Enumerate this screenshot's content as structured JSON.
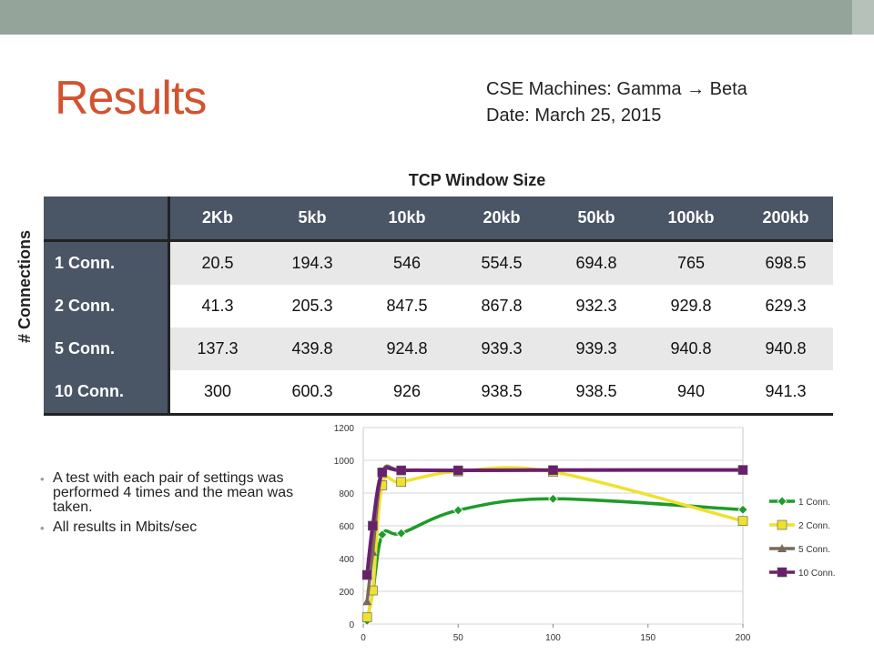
{
  "slide": {
    "title": "Results",
    "meta_line1": "CSE Machines: Gamma → Beta",
    "meta_line2": "Date: March 25, 2015",
    "table_title": "TCP Window Size",
    "row_axis_label": "# Connections",
    "bullets": [
      "A test with each pair of settings was performed 4 times and the mean was taken.",
      "All results in Mbits/sec"
    ]
  },
  "table": {
    "columns": [
      "2Kb",
      "5kb",
      "10kb",
      "20kb",
      "50kb",
      "100kb",
      "200kb"
    ],
    "rows": [
      {
        "label": "1 Conn.",
        "values": [
          "20.5",
          "194.3",
          "546",
          "554.5",
          "694.8",
          "765",
          "698.5"
        ]
      },
      {
        "label": "2 Conn.",
        "values": [
          "41.3",
          "205.3",
          "847.5",
          "867.8",
          "932.3",
          "929.8",
          "629.3"
        ]
      },
      {
        "label": "5 Conn.",
        "values": [
          "137.3",
          "439.8",
          "924.8",
          "939.3",
          "939.3",
          "940.8",
          "940.8"
        ]
      },
      {
        "label": "10 Conn.",
        "values": [
          "300",
          "600.3",
          "926",
          "938.5",
          "938.5",
          "940",
          "941.3"
        ]
      }
    ]
  },
  "chart_data": {
    "type": "line",
    "x": [
      2,
      5,
      10,
      20,
      50,
      100,
      200
    ],
    "xlim": [
      0,
      200
    ],
    "ylim": [
      0,
      1200
    ],
    "xticks": [
      0,
      50,
      100,
      150,
      200
    ],
    "yticks": [
      0,
      200,
      400,
      600,
      800,
      1000,
      1200
    ],
    "grid": "horizontal",
    "legend": "right",
    "smooth": true,
    "series": [
      {
        "name": "1 Conn.",
        "values": [
          20.5,
          194.3,
          546,
          554.5,
          694.8,
          765,
          698.5
        ],
        "color": "#1f9b2a",
        "marker": "diamond"
      },
      {
        "name": "2 Conn.",
        "values": [
          41.3,
          205.3,
          847.5,
          867.8,
          932.3,
          929.8,
          629.3
        ],
        "color": "#f0e030",
        "marker": "square"
      },
      {
        "name": "5 Conn.",
        "values": [
          137.3,
          439.8,
          924.8,
          939.3,
          939.3,
          940.8,
          940.8
        ],
        "color": "#7a6a5a",
        "marker": "triangle"
      },
      {
        "name": "10 Conn.",
        "values": [
          300,
          600.3,
          926,
          938.5,
          938.5,
          940,
          941.3
        ],
        "color": "#6a1f6e",
        "marker": "square"
      }
    ]
  }
}
